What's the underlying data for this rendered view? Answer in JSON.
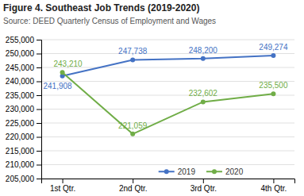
{
  "chart_data": {
    "type": "line",
    "title": "Figure 4. Southeast Job Trends (2019-2020)",
    "subtitle": "Source: DEED Quarterly Census of Employment and Wages",
    "categories": [
      "1st Qtr.",
      "2nd Qtr.",
      "3rd Qtr.",
      "4th Qtr."
    ],
    "series": [
      {
        "name": "2019",
        "color": "#4472C4",
        "marker": "circle",
        "values": [
          241908,
          247738,
          248200,
          249274
        ],
        "value_labels": [
          "241,908",
          "247,738",
          "248,200",
          "249,274"
        ]
      },
      {
        "name": "2020",
        "color": "#70AD47",
        "marker": "circle",
        "values": [
          243210,
          221059,
          232602,
          235500
        ],
        "value_labels": [
          "243,210",
          "221,059",
          "232,602",
          "235,500"
        ]
      }
    ],
    "ylim": [
      205000,
      255000
    ],
    "yticks": [
      {
        "value": 205000,
        "label": "205,000"
      },
      {
        "value": 210000,
        "label": "210,000"
      },
      {
        "value": 215000,
        "label": "215,000"
      },
      {
        "value": 220000,
        "label": "220,000"
      },
      {
        "value": 225000,
        "label": "225,000"
      },
      {
        "value": 230000,
        "label": "230,000"
      },
      {
        "value": 235000,
        "label": "235,000"
      },
      {
        "value": 240000,
        "label": "240,000"
      },
      {
        "value": 245000,
        "label": "245,000"
      },
      {
        "value": 250000,
        "label": "250,000"
      },
      {
        "value": 255000,
        "label": "255,000"
      }
    ],
    "grid": true,
    "legend": "bottom",
    "data_labels": true
  }
}
